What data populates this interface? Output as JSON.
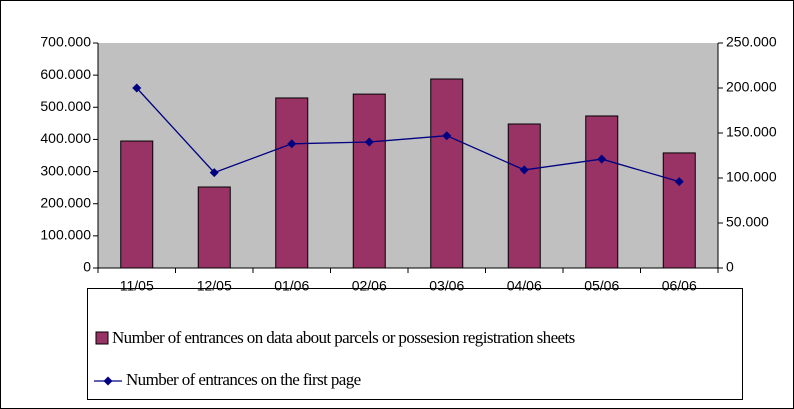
{
  "chart_data": {
    "type": "bar-line",
    "categories": [
      "11/05",
      "12/05",
      "01/06",
      "02/06",
      "03/06",
      "04/06",
      "05/06",
      "06/06"
    ],
    "series": [
      {
        "name": "Number of entrances on data about parcels or possesion registration sheets",
        "color": "#993366",
        "type": "bar",
        "values": [
          395000,
          252000,
          529000,
          541000,
          588000,
          448000,
          473000,
          358000
        ]
      },
      {
        "name": "Number of entrances on the first page",
        "color": "#000080",
        "type": "line",
        "axis": "y2",
        "values": [
          200000,
          106000,
          138000,
          140000,
          147000,
          109000,
          121000,
          96000
        ]
      }
    ],
    "ylim": [
      0,
      700000
    ],
    "yticks": [
      0,
      {
        "value": 100000,
        "label": "100.000"
      },
      {
        "value": 200000,
        "label": "200.000"
      },
      {
        "value": 300000,
        "label": "300.000"
      },
      {
        "value": 400000,
        "label": "400.000"
      },
      {
        "value": 500000,
        "label": "500.000"
      },
      {
        "value": 600000,
        "label": "600.000"
      },
      {
        "value": 700000,
        "label": "700.000"
      }
    ],
    "y2lim": [
      0,
      250000
    ],
    "y2ticks": [
      0,
      {
        "value": 50000,
        "label": "50.000"
      },
      {
        "value": 100000,
        "label": "100.000"
      },
      {
        "value": 150000,
        "label": "150.000"
      },
      {
        "value": 200000,
        "label": "200.000"
      },
      {
        "value": 250000,
        "label": "250.000"
      }
    ],
    "plot_background": "#c0c0c0"
  }
}
